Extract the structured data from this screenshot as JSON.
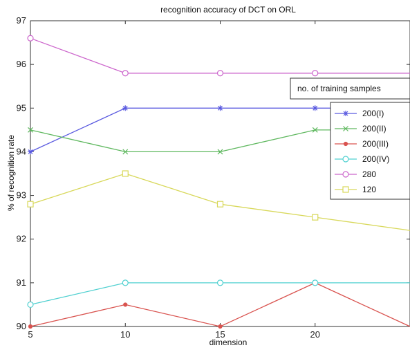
{
  "chart_data": {
    "type": "line",
    "title": "recognition accuracy of DCT on ORL",
    "xlabel": "dimension",
    "ylabel": "% of recognition rate",
    "x": [
      5,
      10,
      15,
      20,
      25
    ],
    "xlim": [
      5,
      25
    ],
    "ylim": [
      90,
      97
    ],
    "x_ticks": [
      5,
      10,
      15,
      20
    ],
    "y_ticks": [
      90,
      91,
      92,
      93,
      94,
      95,
      96,
      97
    ],
    "grid": false,
    "legend_placement": "right",
    "annotation": "no. of training samples",
    "series": [
      {
        "name": "200(I)",
        "values": [
          94.0,
          95.0,
          95.0,
          95.0,
          95.0
        ],
        "color": "#5a5ae0",
        "marker": "asterisk"
      },
      {
        "name": "200(II)",
        "values": [
          94.5,
          94.0,
          94.0,
          94.5,
          94.5
        ],
        "color": "#5fb85f",
        "marker": "x"
      },
      {
        "name": "200(III)",
        "values": [
          90.0,
          90.5,
          90.0,
          91.0,
          90.0
        ],
        "color": "#d9534f",
        "marker": "dot"
      },
      {
        "name": "200(IV)",
        "values": [
          90.5,
          91.0,
          91.0,
          91.0,
          91.0
        ],
        "color": "#4fd0d0",
        "marker": "circle"
      },
      {
        "name": "280",
        "values": [
          96.6,
          95.8,
          95.8,
          95.8,
          95.8
        ],
        "color": "#cc66cc",
        "marker": "circle"
      },
      {
        "name": "120",
        "values": [
          92.8,
          93.5,
          92.8,
          92.5,
          92.2
        ],
        "color": "#d8d85a",
        "marker": "square"
      }
    ]
  }
}
